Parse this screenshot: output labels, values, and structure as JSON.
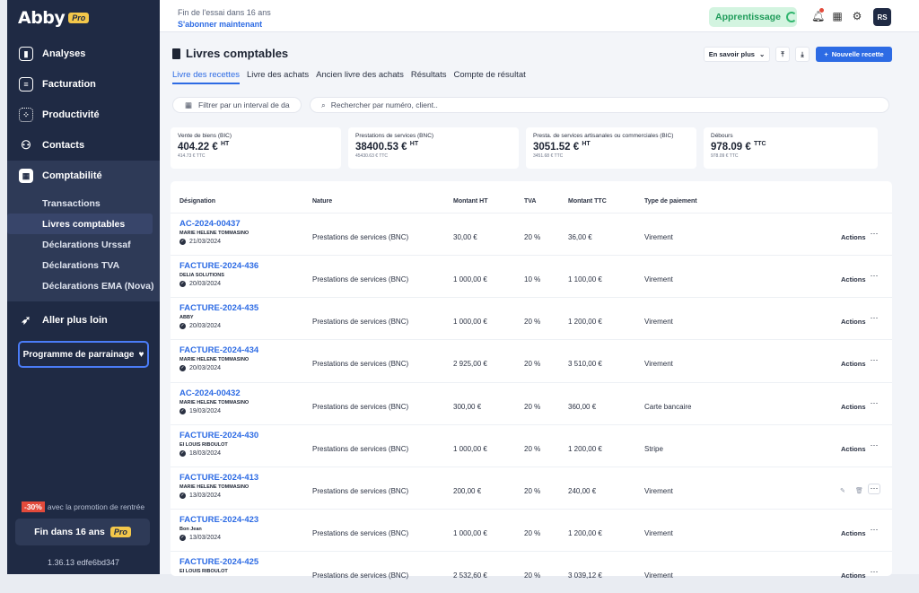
{
  "logo": {
    "text": "Abby",
    "badge": "Pro"
  },
  "sidebar": {
    "items": [
      {
        "label": "Analyses",
        "icon": "chart-icon"
      },
      {
        "label": "Facturation",
        "icon": "invoice-icon"
      },
      {
        "label": "Productivité",
        "icon": "grid-icon"
      },
      {
        "label": "Contacts",
        "icon": "users-icon"
      },
      {
        "label": "Comptabilité",
        "icon": "calculator-icon"
      }
    ],
    "sub_items": [
      "Transactions",
      "Livres comptables",
      "Déclarations Urssaf",
      "Déclarations TVA",
      "Déclarations EMA (Nova)"
    ],
    "extra": "Aller plus loin",
    "referral": "Programme de parrainage",
    "promo_badge": "-30%",
    "promo_text": "avec la promotion de rentrée",
    "end_label": "Fin dans 16 ans",
    "end_badge": "Pro",
    "version": "1.36.13 edfe6bd347"
  },
  "topbar": {
    "trial_text": "Fin de l'essai dans 16 ans",
    "trial_link": "S'abonner maintenant",
    "learning": "Apprentissage",
    "avatar": "RS"
  },
  "page": {
    "title": "Livres comptables",
    "learn_more": "En savoir plus",
    "new_button": "Nouvelle recette",
    "tabs": [
      "Livre des recettes",
      "Livre des achats",
      "Ancien livre des achats",
      "Résultats",
      "Compte de résultat"
    ],
    "filter_placeholder": "Filtrer par un interval de da",
    "search_placeholder": "Rechercher par numéro, client.."
  },
  "cards": [
    {
      "label": "Vente de biens (BIC)",
      "value": "404.22 €",
      "unit": "HT",
      "sub": "414.73 € TTC"
    },
    {
      "label": "Prestations de services (BNC)",
      "value": "38400.53 €",
      "unit": "HT",
      "sub": "45430.63 € TTC"
    },
    {
      "label": "Presta. de services artisanales ou commerciales (BIC)",
      "value": "3051.52 €",
      "unit": "HT",
      "sub": "3451.68 € TTC"
    },
    {
      "label": "Débours",
      "value": "978.09 €",
      "unit": "TTC",
      "sub": "978.09 € TTC"
    }
  ],
  "table": {
    "headers": [
      "Désignation",
      "Nature",
      "Montant HT",
      "TVA",
      "Montant TTC",
      "Type de paiement"
    ],
    "actions_label": "Actions",
    "rows": [
      {
        "ref": "AC-2024-00437",
        "client": "MARIE HELENE TOMMASINO",
        "date": "21/03/2024",
        "nature": "Prestations de services (BNC)",
        "ht": "30,00 €",
        "tva": "20 %",
        "ttc": "36,00 €",
        "payment": "Virement"
      },
      {
        "ref": "FACTURE-2024-436",
        "client": "DELIA SOLUTIONS",
        "date": "20/03/2024",
        "nature": "Prestations de services (BNC)",
        "ht": "1 000,00 €",
        "tva": "10 %",
        "ttc": "1 100,00 €",
        "payment": "Virement"
      },
      {
        "ref": "FACTURE-2024-435",
        "client": "ABBY",
        "date": "20/03/2024",
        "nature": "Prestations de services (BNC)",
        "ht": "1 000,00 €",
        "tva": "20 %",
        "ttc": "1 200,00 €",
        "payment": "Virement"
      },
      {
        "ref": "FACTURE-2024-434",
        "client": "MARIE HELENE TOMMASINO",
        "date": "20/03/2024",
        "nature": "Prestations de services (BNC)",
        "ht": "2 925,00 €",
        "tva": "20 %",
        "ttc": "3 510,00 €",
        "payment": "Virement"
      },
      {
        "ref": "AC-2024-00432",
        "client": "MARIE HELENE TOMMASINO",
        "date": "19/03/2024",
        "nature": "Prestations de services (BNC)",
        "ht": "300,00 €",
        "tva": "20 %",
        "ttc": "360,00 €",
        "payment": "Carte bancaire"
      },
      {
        "ref": "FACTURE-2024-430",
        "client": "EI LOUIS RIBOULOT",
        "date": "18/03/2024",
        "nature": "Prestations de services (BNC)",
        "ht": "1 000,00 €",
        "tva": "20 %",
        "ttc": "1 200,00 €",
        "payment": "Stripe"
      },
      {
        "ref": "FACTURE-2024-413",
        "client": "MARIE HELENE TOMMASINO",
        "date": "13/03/2024",
        "nature": "Prestations de services (BNC)",
        "ht": "200,00 €",
        "tva": "20 %",
        "ttc": "240,00 €",
        "payment": "Virement"
      },
      {
        "ref": "FACTURE-2024-423",
        "client": "Bon Jean",
        "date": "13/03/2024",
        "nature": "Prestations de services (BNC)",
        "ht": "1 000,00 €",
        "tva": "20 %",
        "ttc": "1 200,00 €",
        "payment": "Virement"
      },
      {
        "ref": "FACTURE-2024-425",
        "client": "EI LOUIS RIBOULOT",
        "date": "",
        "nature": "Prestations de services (BNC)",
        "ht": "2 532,60 €",
        "tva": "20 %",
        "ttc": "3 039,12 €",
        "payment": "Virement"
      }
    ]
  }
}
